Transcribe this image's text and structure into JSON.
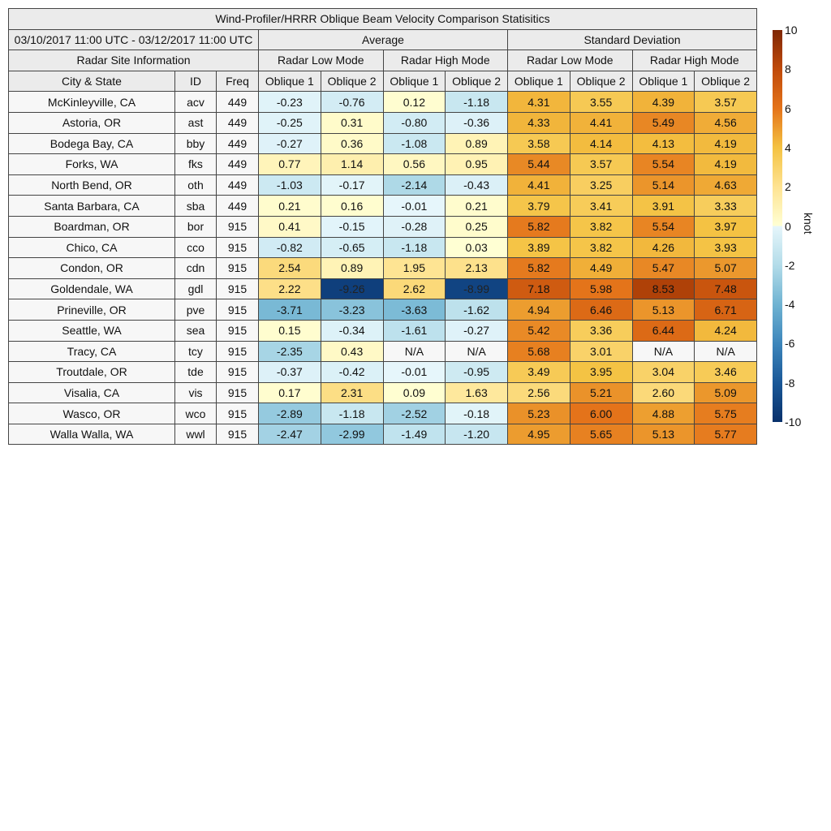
{
  "chart_data": {
    "type": "table",
    "title": "Wind-Profiler/HRRR Oblique Beam Velocity Comparison Statisitics",
    "period": "03/10/2017 11:00 UTC - 03/12/2017 11:00 UTC",
    "groups": [
      "Average",
      "Standard Deviation"
    ],
    "site_info_label": "Radar Site Information",
    "modes": [
      "Radar Low Mode",
      "Radar High Mode",
      "Radar Low Mode",
      "Radar High Mode"
    ],
    "columns": [
      "City & State",
      "ID",
      "Freq",
      "Oblique 1",
      "Oblique 2",
      "Oblique 1",
      "Oblique 2",
      "Oblique 1",
      "Oblique 2",
      "Oblique 1",
      "Oblique 2"
    ],
    "rows": [
      [
        "McKinleyville, CA",
        "acv",
        "449",
        "-0.23",
        "-0.76",
        "0.12",
        "-1.18",
        "4.31",
        "3.55",
        "4.39",
        "3.57"
      ],
      [
        "Astoria, OR",
        "ast",
        "449",
        "-0.25",
        "0.31",
        "-0.80",
        "-0.36",
        "4.33",
        "4.41",
        "5.49",
        "4.56"
      ],
      [
        "Bodega Bay, CA",
        "bby",
        "449",
        "-0.27",
        "0.36",
        "-1.08",
        "0.89",
        "3.58",
        "4.14",
        "4.13",
        "4.19"
      ],
      [
        "Forks, WA",
        "fks",
        "449",
        "0.77",
        "1.14",
        "0.56",
        "0.95",
        "5.44",
        "3.57",
        "5.54",
        "4.19"
      ],
      [
        "North Bend, OR",
        "oth",
        "449",
        "-1.03",
        "-0.17",
        "-2.14",
        "-0.43",
        "4.41",
        "3.25",
        "5.14",
        "4.63"
      ],
      [
        "Santa Barbara, CA",
        "sba",
        "449",
        "0.21",
        "0.16",
        "-0.01",
        "0.21",
        "3.79",
        "3.41",
        "3.91",
        "3.33"
      ],
      [
        "Boardman, OR",
        "bor",
        "915",
        "0.41",
        "-0.15",
        "-0.28",
        "0.25",
        "5.82",
        "3.82",
        "5.54",
        "3.97"
      ],
      [
        "Chico, CA",
        "cco",
        "915",
        "-0.82",
        "-0.65",
        "-1.18",
        "0.03",
        "3.89",
        "3.82",
        "4.26",
        "3.93"
      ],
      [
        "Condon, OR",
        "cdn",
        "915",
        "2.54",
        "0.89",
        "1.95",
        "2.13",
        "5.82",
        "4.49",
        "5.47",
        "5.07"
      ],
      [
        "Goldendale, WA",
        "gdl",
        "915",
        "2.22",
        "-9.26",
        "2.62",
        "-8.99",
        "7.18",
        "5.98",
        "8.53",
        "7.48"
      ],
      [
        "Prineville, OR",
        "pve",
        "915",
        "-3.71",
        "-3.23",
        "-3.63",
        "-1.62",
        "4.94",
        "6.46",
        "5.13",
        "6.71"
      ],
      [
        "Seattle, WA",
        "sea",
        "915",
        "0.15",
        "-0.34",
        "-1.61",
        "-0.27",
        "5.42",
        "3.36",
        "6.44",
        "4.24"
      ],
      [
        "Tracy, CA",
        "tcy",
        "915",
        "-2.35",
        "0.43",
        "N/A",
        "N/A",
        "5.68",
        "3.01",
        "N/A",
        "N/A"
      ],
      [
        "Troutdale, OR",
        "tde",
        "915",
        "-0.37",
        "-0.42",
        "-0.01",
        "-0.95",
        "3.49",
        "3.95",
        "3.04",
        "3.46"
      ],
      [
        "Visalia, CA",
        "vis",
        "915",
        "0.17",
        "2.31",
        "0.09",
        "1.63",
        "2.56",
        "5.21",
        "2.60",
        "5.09"
      ],
      [
        "Wasco, OR",
        "wco",
        "915",
        "-2.89",
        "-1.18",
        "-2.52",
        "-0.18",
        "5.23",
        "6.00",
        "4.88",
        "5.75"
      ],
      [
        "Walla Walla, WA",
        "wwl",
        "915",
        "-2.47",
        "-2.99",
        "-1.49",
        "-1.20",
        "4.95",
        "5.65",
        "5.13",
        "5.77"
      ]
    ],
    "colorbar": {
      "label": "knot",
      "range": [
        -10,
        10
      ],
      "ticks": [
        "10",
        "8",
        "6",
        "4",
        "2",
        "0",
        "-2",
        "-4",
        "-6",
        "-8",
        "-10"
      ],
      "stops": [
        [
          "-10",
          "#08306b"
        ],
        [
          "-8",
          "#1a5898"
        ],
        [
          "-6",
          "#3d86bb"
        ],
        [
          "-4",
          "#6fb3d2"
        ],
        [
          "-2",
          "#b3dce9"
        ],
        [
          "0",
          "#e6f6fb"
        ],
        [
          "0.01",
          "#ffffd4"
        ],
        [
          "2",
          "#fee391"
        ],
        [
          "4",
          "#f4c242"
        ],
        [
          "6",
          "#e4731a"
        ],
        [
          "8",
          "#c04a0a"
        ],
        [
          "10",
          "#7f2704"
        ]
      ],
      "na_color": "#f7f7f7"
    }
  }
}
